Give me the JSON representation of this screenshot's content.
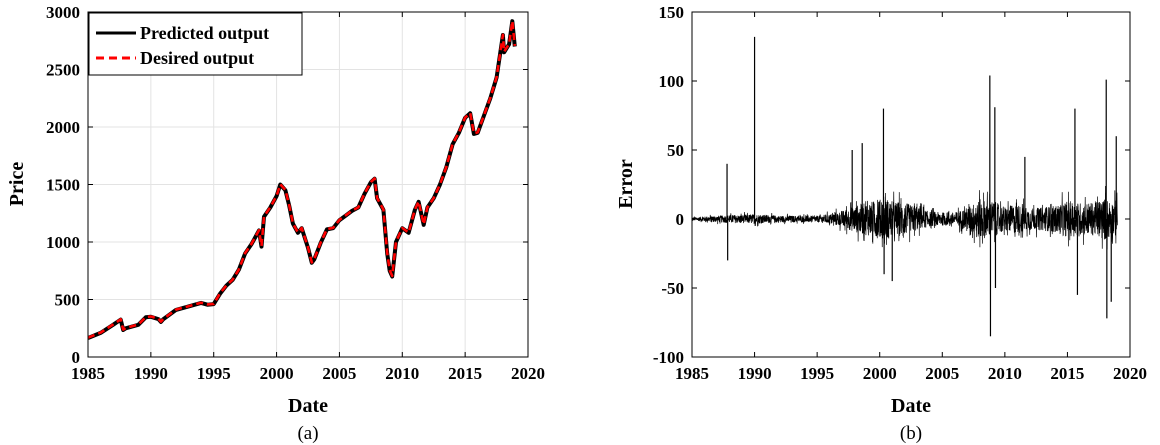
{
  "chart_data": [
    {
      "type": "line",
      "panel_label": "(a)",
      "xlabel": "Date",
      "ylabel": "Price",
      "xlim": [
        1985,
        2020
      ],
      "ylim": [
        0,
        3000
      ],
      "xticks": [
        1985,
        1990,
        1995,
        2000,
        2005,
        2010,
        2015,
        2020
      ],
      "yticks": [
        0,
        500,
        1000,
        1500,
        2000,
        2500,
        3000
      ],
      "grid": true,
      "legend": "top-left",
      "series": [
        {
          "name": "Predicted output",
          "color": "#000000",
          "style": "solid",
          "x": [
            1985.0,
            1986.0,
            1987.0,
            1987.6,
            1987.8,
            1988.0,
            1989.0,
            1989.6,
            1990.0,
            1990.6,
            1990.8,
            1991.0,
            1992.0,
            1993.0,
            1994.0,
            1994.5,
            1995.0,
            1995.5,
            1996.0,
            1996.5,
            1997.0,
            1997.5,
            1998.0,
            1998.6,
            1998.8,
            1999.0,
            1999.5,
            2000.0,
            2000.3,
            2000.7,
            2001.0,
            2001.3,
            2001.7,
            2002.0,
            2002.5,
            2002.8,
            2003.0,
            2003.5,
            2004.0,
            2004.5,
            2005.0,
            2005.5,
            2006.0,
            2006.5,
            2007.0,
            2007.5,
            2007.8,
            2008.0,
            2008.5,
            2008.8,
            2009.0,
            2009.2,
            2009.5,
            2010.0,
            2010.5,
            2011.0,
            2011.3,
            2011.7,
            2012.0,
            2012.5,
            2013.0,
            2013.5,
            2014.0,
            2014.5,
            2015.0,
            2015.4,
            2015.7,
            2016.0,
            2016.5,
            2017.0,
            2017.5,
            2018.0,
            2018.1,
            2018.5,
            2018.75,
            2018.95
          ],
          "y": [
            165,
            210,
            280,
            325,
            235,
            250,
            280,
            345,
            350,
            330,
            305,
            330,
            410,
            440,
            470,
            455,
            460,
            550,
            620,
            670,
            760,
            900,
            980,
            1100,
            960,
            1220,
            1300,
            1400,
            1500,
            1450,
            1320,
            1160,
            1080,
            1120,
            950,
            820,
            850,
            990,
            1110,
            1120,
            1190,
            1230,
            1270,
            1300,
            1420,
            1520,
            1550,
            1380,
            1280,
            900,
            750,
            700,
            1000,
            1120,
            1080,
            1280,
            1350,
            1150,
            1300,
            1380,
            1500,
            1650,
            1850,
            1950,
            2080,
            2120,
            1940,
            1950,
            2100,
            2250,
            2430,
            2800,
            2650,
            2720,
            2920,
            2700
          ]
        },
        {
          "name": "Desired output",
          "color": "#ff0000",
          "style": "dashed",
          "x": [
            1985.0,
            1986.0,
            1987.0,
            1987.6,
            1987.8,
            1988.0,
            1989.0,
            1989.6,
            1990.0,
            1990.6,
            1990.8,
            1991.0,
            1992.0,
            1993.0,
            1994.0,
            1994.5,
            1995.0,
            1995.5,
            1996.0,
            1996.5,
            1997.0,
            1997.5,
            1998.0,
            1998.6,
            1998.8,
            1999.0,
            1999.5,
            2000.0,
            2000.3,
            2000.7,
            2001.0,
            2001.3,
            2001.7,
            2002.0,
            2002.5,
            2002.8,
            2003.0,
            2003.5,
            2004.0,
            2004.5,
            2005.0,
            2005.5,
            2006.0,
            2006.5,
            2007.0,
            2007.5,
            2007.8,
            2008.0,
            2008.5,
            2008.8,
            2009.0,
            2009.2,
            2009.5,
            2010.0,
            2010.5,
            2011.0,
            2011.3,
            2011.7,
            2012.0,
            2012.5,
            2013.0,
            2013.5,
            2014.0,
            2014.5,
            2015.0,
            2015.4,
            2015.7,
            2016.0,
            2016.5,
            2017.0,
            2017.5,
            2018.0,
            2018.1,
            2018.5,
            2018.75,
            2018.95
          ],
          "y": [
            168,
            212,
            283,
            328,
            238,
            252,
            283,
            347,
            352,
            332,
            308,
            332,
            412,
            442,
            472,
            457,
            462,
            553,
            622,
            672,
            762,
            903,
            983,
            1102,
            965,
            1223,
            1303,
            1402,
            1502,
            1453,
            1323,
            1163,
            1083,
            1122,
            953,
            823,
            853,
            993,
            1112,
            1123,
            1192,
            1232,
            1272,
            1302,
            1423,
            1522,
            1552,
            1383,
            1283,
            905,
            755,
            705,
            1003,
            1122,
            1083,
            1282,
            1352,
            1153,
            1302,
            1382,
            1502,
            1652,
            1852,
            1952,
            2082,
            2122,
            1945,
            1953,
            2102,
            2252,
            2432,
            2802,
            2655,
            2722,
            2922,
            2705
          ]
        }
      ]
    },
    {
      "type": "line",
      "panel_label": "(b)",
      "xlabel": "Date",
      "ylabel": "Error",
      "xlim": [
        1985,
        2020
      ],
      "ylim": [
        -100,
        150
      ],
      "xticks": [
        1985,
        1990,
        1995,
        2000,
        2005,
        2010,
        2015,
        2020
      ],
      "yticks": [
        -100,
        -50,
        0,
        50,
        100,
        150
      ],
      "grid": false,
      "series": [
        {
          "color": "#000000",
          "style": "solid",
          "envelope_x": [
            1985,
            1986,
            1987,
            1988,
            1989,
            1990,
            1991,
            1992,
            1993,
            1994,
            1995,
            1996,
            1997,
            1998,
            1999,
            2000,
            2001,
            2002,
            2003,
            2004,
            2005,
            2006,
            2007,
            2008,
            2009,
            2010,
            2011,
            2012,
            2013,
            2014,
            2015,
            2016,
            2017,
            2018,
            2019
          ],
          "envelope_amplitude": [
            2,
            3,
            4,
            5,
            5,
            6,
            5,
            4,
            4,
            4,
            4,
            6,
            10,
            16,
            20,
            24,
            22,
            20,
            14,
            9,
            8,
            8,
            14,
            24,
            22,
            15,
            18,
            13,
            14,
            16,
            22,
            20,
            20,
            26,
            20
          ],
          "spikes_x": [
            1987.8,
            1987.85,
            1990.0,
            1990.05,
            1997.8,
            1998.6,
            2000.3,
            2000.35,
            2001.0,
            2008.8,
            2008.85,
            2009.2,
            2009.25,
            2011.6,
            2015.6,
            2015.8,
            2018.1,
            2018.15,
            2018.5,
            2018.9
          ],
          "spikes_y": [
            40,
            -30,
            132,
            -5,
            50,
            55,
            80,
            -40,
            -45,
            104,
            -85,
            81,
            -50,
            45,
            80,
            -55,
            101,
            -72,
            -60,
            60
          ]
        }
      ]
    }
  ]
}
